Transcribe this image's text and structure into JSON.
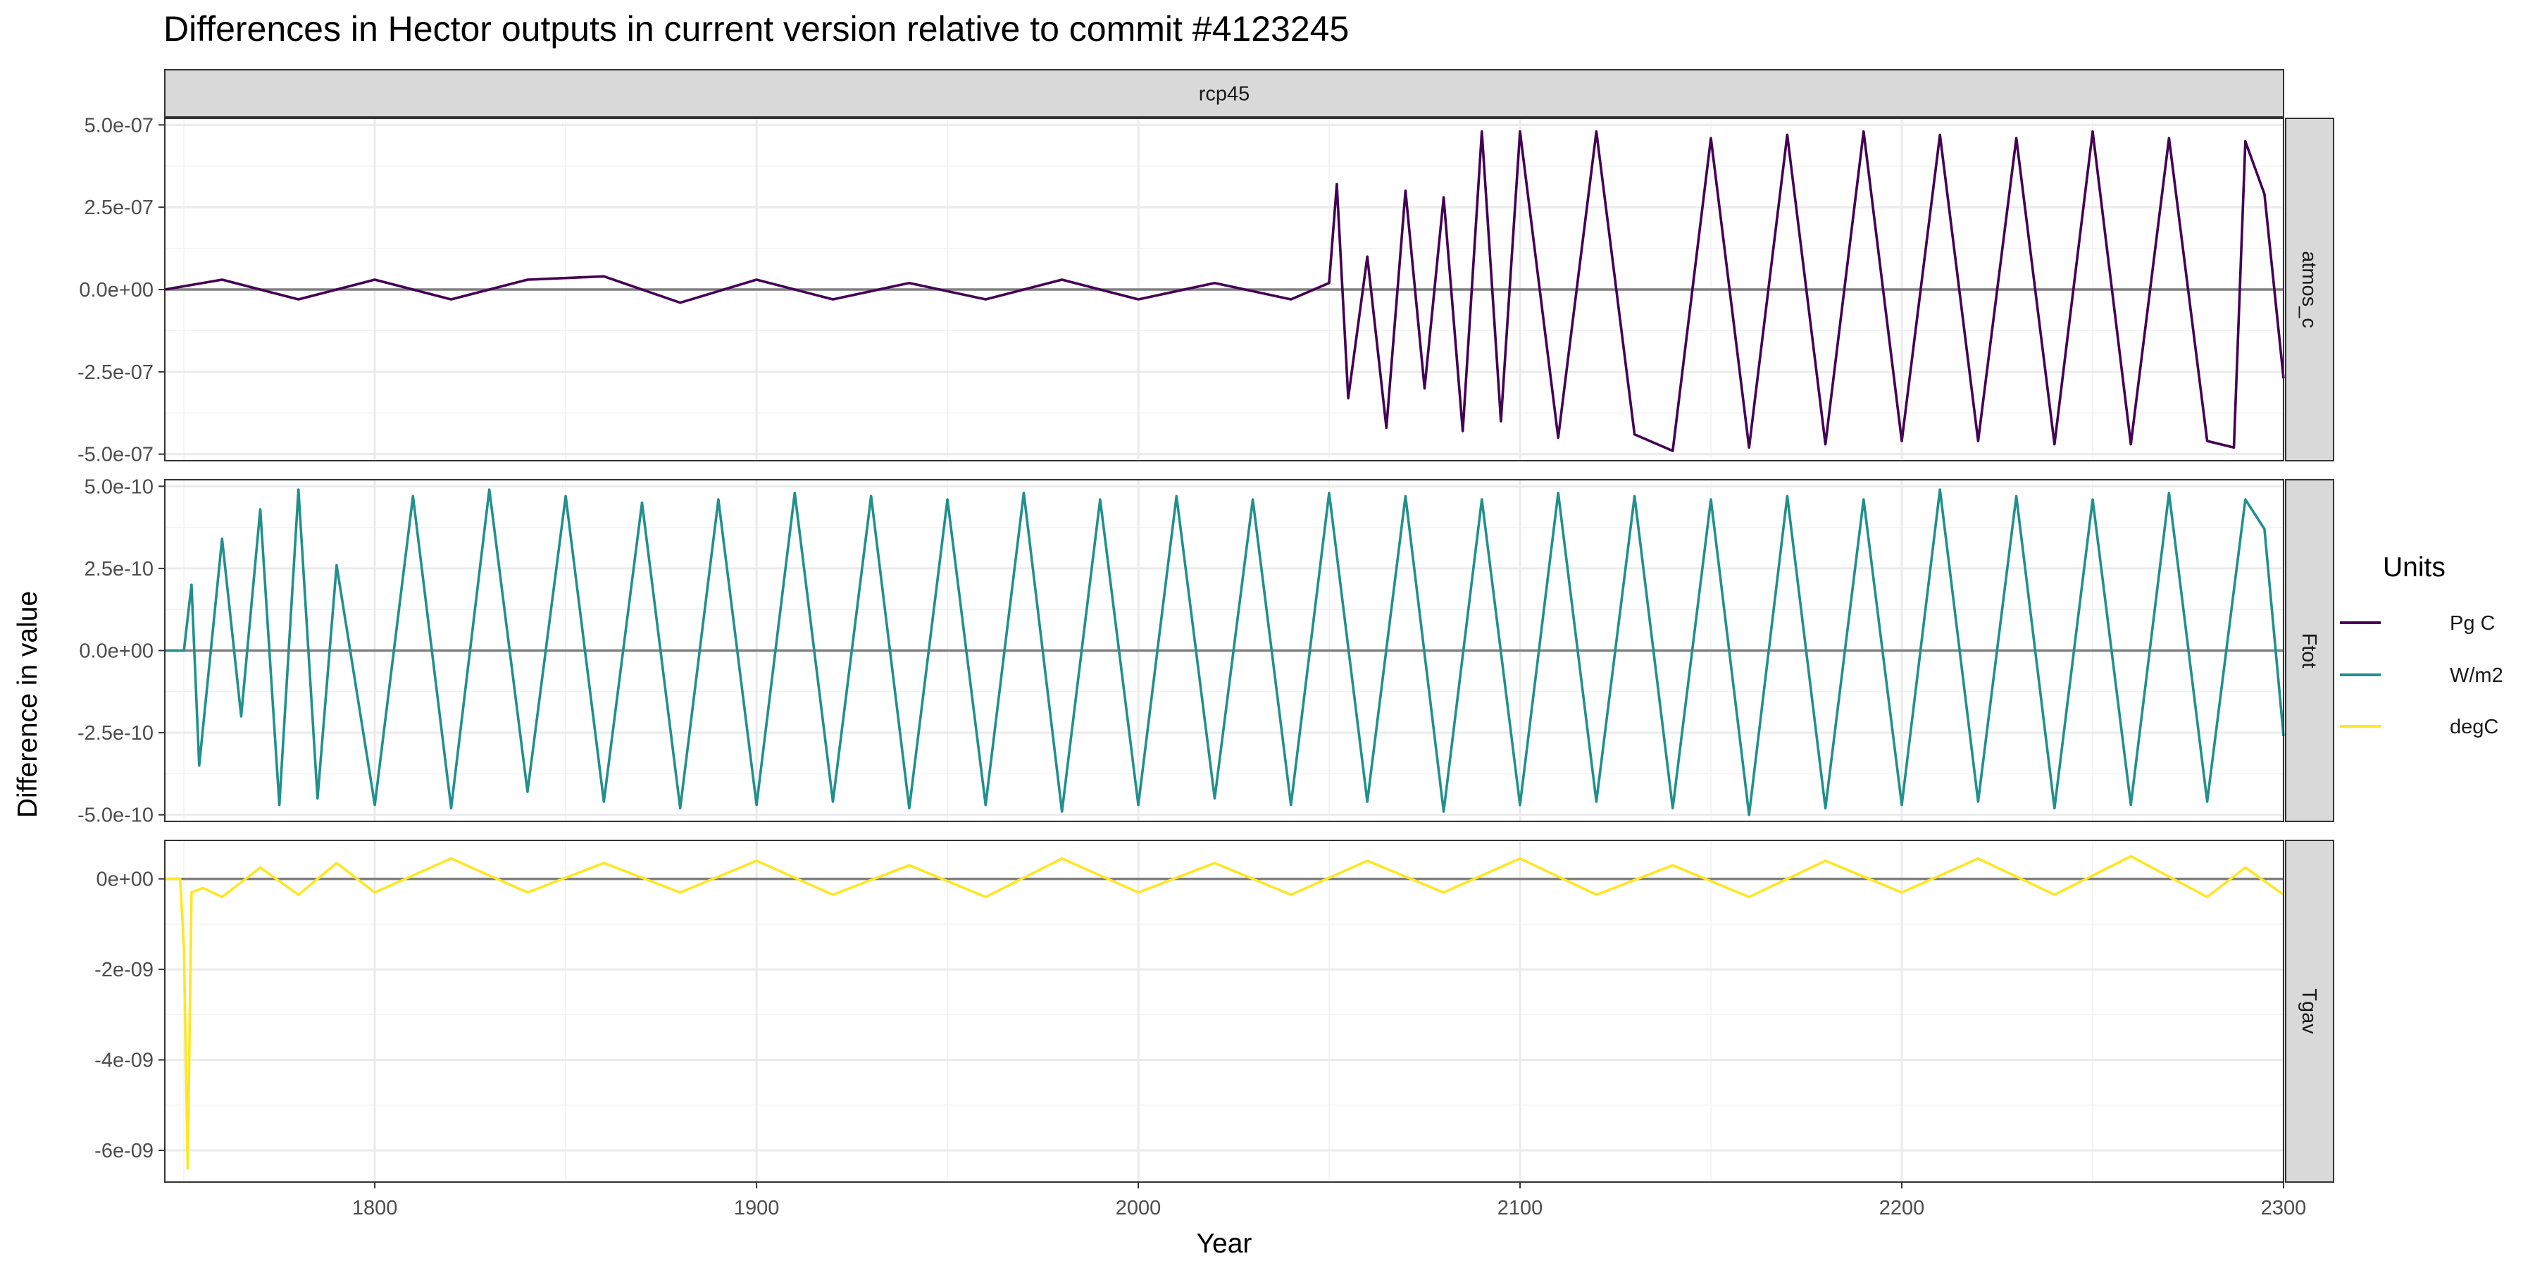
{
  "chart_data": {
    "type": "line",
    "title": "Differences in Hector outputs in current version relative to commit #4123245",
    "xlabel": "Year",
    "ylabel": "Difference in value",
    "column_facet": "rcp45",
    "x_range": [
      1745,
      2300
    ],
    "x_ticks": [
      1800,
      1900,
      2000,
      2100,
      2200,
      2300
    ],
    "legend": {
      "title": "Units",
      "position": "right",
      "entries": [
        {
          "label": "Pg C",
          "color": "#440154"
        },
        {
          "label": "W/m2",
          "color": "#21908C"
        },
        {
          "label": "degC",
          "color": "#FDE725"
        }
      ]
    },
    "grid": true,
    "panels": [
      {
        "variable": "atmos_c",
        "units": "Pg C",
        "color": "#440154",
        "ylim": [
          -5.2e-07,
          5.2e-07
        ],
        "y_ticks": [
          -5e-07,
          -2.5e-07,
          0,
          2.5e-07,
          5e-07
        ],
        "y_tick_labels": [
          "-5.0e-07",
          "-2.5e-07",
          "0.0e+00",
          "2.5e-07",
          "5.0e-07"
        ],
        "x": [
          1745,
          1760,
          1780,
          1800,
          1820,
          1840,
          1860,
          1880,
          1900,
          1920,
          1940,
          1960,
          1980,
          2000,
          2020,
          2040,
          2050,
          2052,
          2055,
          2060,
          2065,
          2070,
          2075,
          2080,
          2085,
          2090,
          2095,
          2100,
          2110,
          2120,
          2130,
          2140,
          2150,
          2160,
          2170,
          2180,
          2190,
          2200,
          2210,
          2220,
          2230,
          2240,
          2250,
          2260,
          2270,
          2280,
          2287,
          2290,
          2295,
          2300
        ],
        "values": [
          0,
          3e-08,
          -3e-08,
          3e-08,
          -3e-08,
          3e-08,
          4e-08,
          -4e-08,
          3e-08,
          -3e-08,
          2e-08,
          -3e-08,
          3e-08,
          -3e-08,
          2e-08,
          -3e-08,
          2e-08,
          3.2e-07,
          -3.3e-07,
          1e-07,
          -4.2e-07,
          3e-07,
          -3e-07,
          2.8e-07,
          -4.3e-07,
          4.8e-07,
          -4e-07,
          4.8e-07,
          -4.5e-07,
          4.8e-07,
          -4.4e-07,
          -4.9e-07,
          4.6e-07,
          -4.8e-07,
          4.7e-07,
          -4.7e-07,
          4.8e-07,
          -4.6e-07,
          4.7e-07,
          -4.6e-07,
          4.6e-07,
          -4.7e-07,
          4.8e-07,
          -4.7e-07,
          4.6e-07,
          -4.6e-07,
          -4.8e-07,
          4.5e-07,
          2.9e-07,
          -2.7e-07
        ]
      },
      {
        "variable": "Ftot",
        "units": "W/m2",
        "color": "#21908C",
        "ylim": [
          -5.2e-10,
          5.2e-10
        ],
        "y_ticks": [
          -5e-10,
          -2.5e-10,
          0,
          2.5e-10,
          5e-10
        ],
        "y_tick_labels": [
          "-5.0e-10",
          "-2.5e-10",
          "0.0e+00",
          "2.5e-10",
          "5.0e-10"
        ],
        "x": [
          1745,
          1750,
          1752,
          1754,
          1760,
          1765,
          1770,
          1775,
          1780,
          1785,
          1790,
          1800,
          1810,
          1820,
          1830,
          1840,
          1850,
          1860,
          1870,
          1880,
          1890,
          1900,
          1910,
          1920,
          1930,
          1940,
          1950,
          1960,
          1970,
          1980,
          1990,
          2000,
          2010,
          2020,
          2030,
          2040,
          2050,
          2060,
          2070,
          2080,
          2090,
          2100,
          2110,
          2120,
          2130,
          2140,
          2150,
          2160,
          2170,
          2180,
          2190,
          2200,
          2210,
          2220,
          2230,
          2240,
          2250,
          2260,
          2270,
          2280,
          2290,
          2295,
          2300
        ],
        "values": [
          0,
          0,
          2e-10,
          -3.5e-10,
          3.4e-10,
          -2e-10,
          4.3e-10,
          -4.7e-10,
          4.9e-10,
          -4.5e-10,
          2.6e-10,
          -4.7e-10,
          4.7e-10,
          -4.8e-10,
          4.9e-10,
          -4.3e-10,
          4.7e-10,
          -4.6e-10,
          4.5e-10,
          -4.8e-10,
          4.6e-10,
          -4.7e-10,
          4.8e-10,
          -4.6e-10,
          4.7e-10,
          -4.8e-10,
          4.6e-10,
          -4.7e-10,
          4.8e-10,
          -4.9e-10,
          4.6e-10,
          -4.7e-10,
          4.7e-10,
          -4.5e-10,
          4.6e-10,
          -4.7e-10,
          4.8e-10,
          -4.6e-10,
          4.7e-10,
          -4.9e-10,
          4.6e-10,
          -4.7e-10,
          4.8e-10,
          -4.6e-10,
          4.7e-10,
          -4.8e-10,
          4.6e-10,
          -5e-10,
          4.7e-10,
          -4.8e-10,
          4.6e-10,
          -4.7e-10,
          4.9e-10,
          -4.6e-10,
          4.7e-10,
          -4.8e-10,
          4.6e-10,
          -4.7e-10,
          4.8e-10,
          -4.6e-10,
          4.6e-10,
          3.7e-10,
          -2.6e-10
        ]
      },
      {
        "variable": "Tgav",
        "units": "degC",
        "color": "#FDE725",
        "ylim": [
          -6.7e-09,
          8.5e-10
        ],
        "y_ticks": [
          -6e-09,
          -4e-09,
          -2e-09,
          0
        ],
        "y_tick_labels": [
          "-6e-09",
          "-4e-09",
          "-2e-09",
          "0e+00"
        ],
        "x": [
          1745,
          1749,
          1750,
          1751,
          1752,
          1755,
          1760,
          1770,
          1780,
          1790,
          1800,
          1820,
          1840,
          1860,
          1880,
          1900,
          1920,
          1940,
          1960,
          1980,
          2000,
          2020,
          2040,
          2060,
          2080,
          2100,
          2120,
          2140,
          2160,
          2180,
          2200,
          2220,
          2240,
          2260,
          2280,
          2290,
          2300
        ],
        "values": [
          0,
          0,
          -1.5e-09,
          -6.4e-09,
          -3e-10,
          -2e-10,
          -4e-10,
          2.5e-10,
          -3.5e-10,
          3.5e-10,
          -3e-10,
          4.5e-10,
          -3e-10,
          3.5e-10,
          -3e-10,
          4e-10,
          -3.5e-10,
          3e-10,
          -4e-10,
          4.5e-10,
          -3e-10,
          3.5e-10,
          -3.5e-10,
          4e-10,
          -3e-10,
          4.5e-10,
          -3.5e-10,
          3e-10,
          -4e-10,
          4e-10,
          -3e-10,
          4.5e-10,
          -3.5e-10,
          5e-10,
          -4e-10,
          2.5e-10,
          -3.5e-10
        ]
      }
    ]
  }
}
